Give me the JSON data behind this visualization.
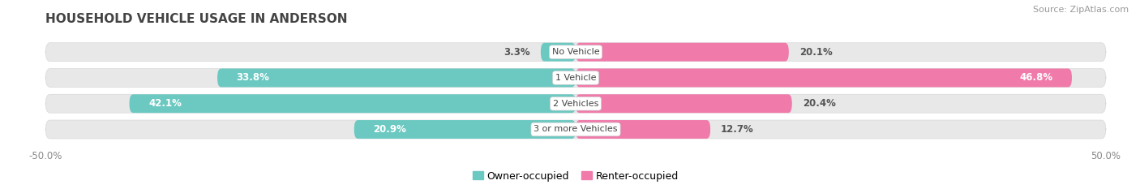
{
  "title": "HOUSEHOLD VEHICLE USAGE IN ANDERSON",
  "source": "Source: ZipAtlas.com",
  "categories": [
    "No Vehicle",
    "1 Vehicle",
    "2 Vehicles",
    "3 or more Vehicles"
  ],
  "owner_values": [
    3.3,
    33.8,
    42.1,
    20.9
  ],
  "renter_values": [
    20.1,
    46.8,
    20.4,
    12.7
  ],
  "owner_color": "#6CC9C2",
  "renter_color": "#F07AAA",
  "bar_bg_color": "#E8E8E8",
  "bar_bg_edge": "#D8D8D8",
  "legend_owner": "Owner-occupied",
  "legend_renter": "Renter-occupied",
  "title_fontsize": 11,
  "source_fontsize": 8,
  "label_fontsize": 8.5,
  "category_fontsize": 8,
  "tick_fontsize": 8.5,
  "xtick_labels": [
    "-50.0%",
    "50.0%"
  ]
}
